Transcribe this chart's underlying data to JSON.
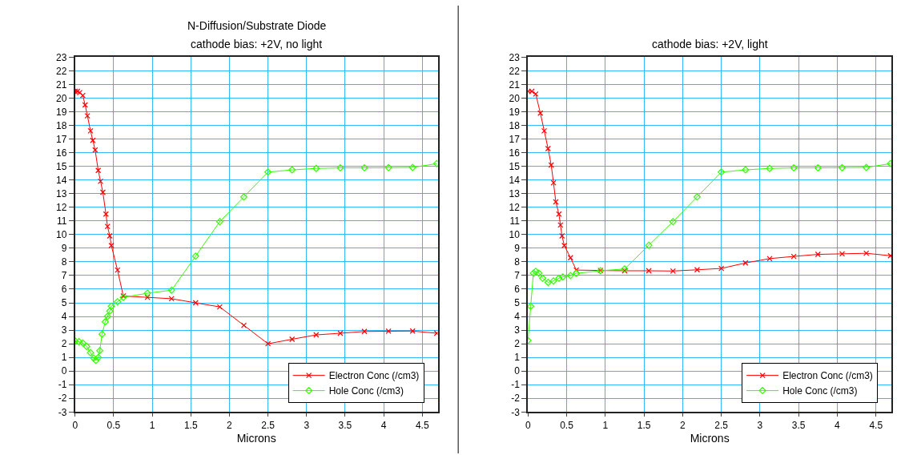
{
  "chart_data": [
    {
      "type": "line",
      "title": "N-Diffusion/Substrate Diode",
      "subtitle": "cathode bias: +2V, no light",
      "xlabel": "Microns",
      "xlim": [
        0,
        4.7
      ],
      "xticks": [
        0,
        0.5,
        1,
        1.5,
        2,
        2.5,
        3,
        3.5,
        4,
        4.5
      ],
      "ylim": [
        -3,
        23
      ],
      "yticks": [
        -3,
        -2,
        -1,
        0,
        1,
        2,
        3,
        4,
        5,
        6,
        7,
        8,
        9,
        10,
        11,
        12,
        13,
        14,
        15,
        16,
        17,
        18,
        19,
        20,
        21,
        22,
        23
      ],
      "grid": true,
      "legend": "bottom right",
      "series": [
        {
          "name": "Electron Conc (/cm3)",
          "color": "#ff0000",
          "marker": "cross",
          "x": [
            0,
            0.03,
            0.06,
            0.1,
            0.13,
            0.16,
            0.2,
            0.23,
            0.26,
            0.3,
            0.33,
            0.36,
            0.4,
            0.42,
            0.45,
            0.47,
            0.55,
            0.625,
            0.9375,
            1.25,
            1.5625,
            1.875,
            2.1875,
            2.5,
            2.8125,
            3.125,
            3.4375,
            3.75,
            4.0625,
            4.375,
            4.6875
          ],
          "values": [
            20.5,
            20.5,
            20.4,
            20.2,
            19.5,
            18.7,
            17.6,
            16.9,
            16.2,
            14.7,
            13.9,
            13.1,
            11.5,
            10.6,
            9.9,
            9.2,
            7.4,
            5.5,
            5.4,
            5.3,
            5.0,
            4.7,
            3.35,
            2.0,
            2.33,
            2.65,
            2.77,
            2.9,
            2.92,
            2.93,
            2.77
          ]
        },
        {
          "name": "Hole Conc (/cm3)",
          "color": "#33ff00",
          "marker": "diamond",
          "x": [
            0,
            0.05,
            0.1,
            0.15,
            0.2,
            0.24,
            0.27,
            0.3,
            0.32,
            0.35,
            0.39,
            0.42,
            0.45,
            0.47,
            0.55,
            0.625,
            0.9375,
            1.25,
            1.5625,
            1.875,
            2.1875,
            2.5,
            2.8125,
            3.125,
            3.4375,
            3.75,
            4.0625,
            4.375,
            4.6875
          ],
          "values": [
            2.2,
            2.15,
            2.05,
            1.8,
            1.35,
            0.95,
            0.77,
            1.0,
            1.5,
            2.7,
            3.6,
            4.0,
            4.4,
            4.75,
            5.07,
            5.4,
            5.7,
            5.93,
            8.42,
            10.95,
            12.76,
            14.58,
            14.74,
            14.85,
            14.89,
            14.89,
            14.9,
            14.92,
            15.2
          ]
        }
      ]
    },
    {
      "type": "line",
      "title": "cathode bias: +2V, light",
      "xlabel": "Microns",
      "xlim": [
        0,
        4.7
      ],
      "xticks": [
        0,
        0.5,
        1,
        1.5,
        2,
        2.5,
        3,
        3.5,
        4,
        4.5
      ],
      "ylim": [
        -3,
        23
      ],
      "yticks": [
        -3,
        -2,
        -1,
        0,
        1,
        2,
        3,
        4,
        5,
        6,
        7,
        8,
        9,
        10,
        11,
        12,
        13,
        14,
        15,
        16,
        17,
        18,
        19,
        20,
        21,
        22,
        23
      ],
      "grid": true,
      "legend": "bottom right",
      "series": [
        {
          "name": "Electron Conc (/cm3)",
          "color": "#ff0000",
          "marker": "cross",
          "x": [
            0,
            0.05,
            0.1,
            0.16,
            0.21,
            0.26,
            0.3,
            0.33,
            0.36,
            0.4,
            0.42,
            0.44,
            0.47,
            0.55,
            0.625,
            0.9375,
            1.25,
            1.5625,
            1.875,
            2.1875,
            2.5,
            2.8125,
            3.125,
            3.4375,
            3.75,
            4.0625,
            4.375,
            4.6875
          ],
          "values": [
            20.5,
            20.5,
            20.3,
            18.9,
            17.6,
            16.3,
            15.1,
            13.8,
            12.4,
            11.5,
            10.7,
            9.9,
            9.2,
            8.3,
            7.4,
            7.37,
            7.35,
            7.35,
            7.33,
            7.42,
            7.52,
            7.92,
            8.24,
            8.4,
            8.55,
            8.59,
            8.63,
            8.45
          ]
        },
        {
          "name": "Hole Conc (/cm3)",
          "color": "#33ff00",
          "marker": "diamond",
          "x": [
            0,
            0.035,
            0.07,
            0.1,
            0.14,
            0.19,
            0.26,
            0.33,
            0.4,
            0.45,
            0.55,
            0.625,
            0.9375,
            1.25,
            1.5625,
            1.875,
            2.1875,
            2.5,
            2.8125,
            3.125,
            3.4375,
            3.75,
            4.0625,
            4.375,
            4.6875
          ],
          "values": [
            2.24,
            4.75,
            7.18,
            7.3,
            7.18,
            6.8,
            6.5,
            6.6,
            6.8,
            6.9,
            7.0,
            7.16,
            7.35,
            7.48,
            9.22,
            10.95,
            12.76,
            14.58,
            14.74,
            14.85,
            14.89,
            14.89,
            14.9,
            14.92,
            15.2
          ]
        }
      ]
    }
  ]
}
